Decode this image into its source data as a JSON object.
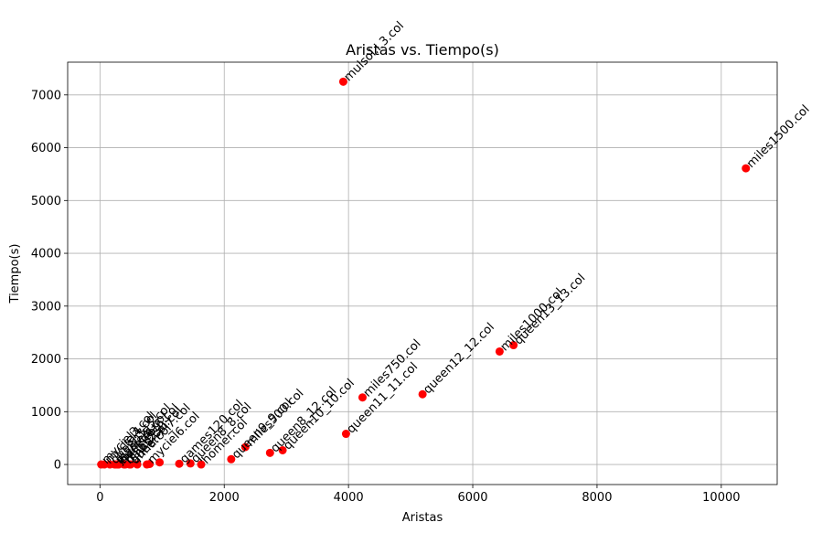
{
  "chart_data": {
    "type": "scatter",
    "title": "Aristas vs. Tiempo(s)",
    "xlabel": "Aristas",
    "ylabel": "Tiempo(s)",
    "xlim": [
      -520,
      10900
    ],
    "ylim": [
      -380,
      7620
    ],
    "xticks": [
      0,
      2000,
      4000,
      6000,
      8000,
      10000
    ],
    "yticks": [
      0,
      1000,
      2000,
      3000,
      4000,
      5000,
      6000,
      7000
    ],
    "grid": true,
    "marker_color": "#ff0000",
    "points": [
      {
        "label": "myciel3.col",
        "x": 20,
        "y": 0
      },
      {
        "label": "myciel4.col",
        "x": 71,
        "y": 0
      },
      {
        "label": "myciel5.col",
        "x": 236,
        "y": 0
      },
      {
        "label": "huck.col",
        "x": 301,
        "y": 0
      },
      {
        "label": "jean.col",
        "x": 254,
        "y": 0
      },
      {
        "label": "david.col",
        "x": 406,
        "y": 0
      },
      {
        "label": "anna.col",
        "x": 493,
        "y": 0
      },
      {
        "label": "myciel6.col",
        "x": 755,
        "y": 0
      },
      {
        "label": "queen5_5.col",
        "x": 160,
        "y": 0
      },
      {
        "label": "queen6_6.col",
        "x": 290,
        "y": 0
      },
      {
        "label": "queen7_7.col",
        "x": 476,
        "y": 0
      },
      {
        "label": "homer.col",
        "x": 1629,
        "y": 0
      },
      {
        "label": "miles250.col",
        "x": 387,
        "y": 0
      },
      {
        "label": "queen8_8.col",
        "x": 1456,
        "y": 20
      },
      {
        "label": "games120.col",
        "x": 1276,
        "y": 15
      },
      {
        "label": "queen9_9.col",
        "x": 2112,
        "y": 100
      },
      {
        "label": "miles500.col",
        "x": 2340,
        "y": 330
      },
      {
        "label": "queen8_12.col",
        "x": 2737,
        "y": 220
      },
      {
        "label": "queen10_10.col",
        "x": 2940,
        "y": 270
      },
      {
        "label": "mulsol.i.3.col",
        "x": 3916,
        "y": 7250
      },
      {
        "label": "queen11_11.col",
        "x": 3960,
        "y": 580
      },
      {
        "label": "miles750.col",
        "x": 4226,
        "y": 1270
      },
      {
        "label": "queen12_12.col",
        "x": 5192,
        "y": 1330
      },
      {
        "label": "miles1000.col",
        "x": 6432,
        "y": 2140
      },
      {
        "label": "queen13_13.col",
        "x": 6656,
        "y": 2260
      },
      {
        "label": "miles1500.col",
        "x": 10396,
        "y": 5610
      },
      {
        "label": "",
        "x": 600,
        "y": 0
      },
      {
        "label": "",
        "x": 800,
        "y": 10
      },
      {
        "label": "",
        "x": 960,
        "y": 40
      }
    ]
  }
}
